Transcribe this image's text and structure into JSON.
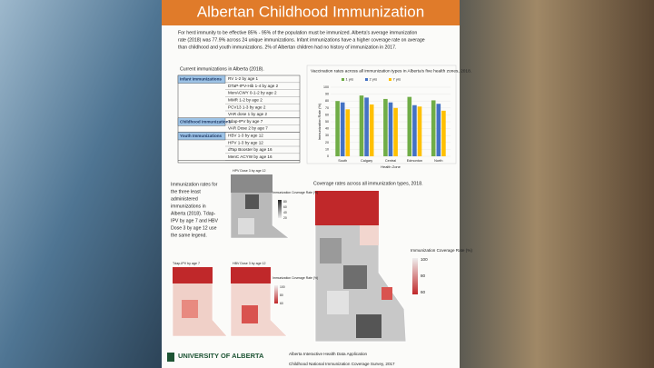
{
  "header": {
    "title": "Albertan Childhood Immunization"
  },
  "intro_lines": [
    "For herd immunity to be effective 85% - 95% of the population must be immunized. Alberta's average immunization",
    "rate (2018) was 77.9% across 24 unique immunizations. Infant immunizations have a higher coverage rate on average",
    "than childhood and youth immunizations. 2% of Albertan children had no history of immunization in 2017."
  ],
  "table": {
    "caption": "Current immunizations in Alberta (2018).",
    "groups": [
      {
        "name": "Infant Immunizations",
        "items": [
          "RV 1-2 by age 1",
          "DTaP-IPV-Hib 1-4 by age 2",
          "MenACWY 0-1-2 by age 2",
          "MMR 1-2 by age 2",
          "PCV13 1-3 by age 2",
          "VAR dose 1 by age 2"
        ]
      },
      {
        "name": "Childhood Immunizations",
        "items": [
          "Tdap-IPV by age 7",
          "VAR Dose 2 by age 7"
        ]
      },
      {
        "name": "Youth Immunizations",
        "items": [
          "HBV 1-3 by age 12",
          "HPV 1-3 by age 12",
          "dTap Booster by age 16",
          "MenC ACYW by age 16"
        ]
      }
    ]
  },
  "chart_data": {
    "type": "bar",
    "title": "Vaccination rates across all immunization types in Alberta's five health zones, 2018.",
    "x_label": "Health Zone",
    "y_label": "Immunization Rate (%)",
    "categories": [
      "South",
      "Calgary",
      "Central",
      "Edmonton",
      "North"
    ],
    "series": [
      {
        "name": "1 yrs",
        "color": "#70ad47",
        "values": [
          80,
          88,
          83,
          86,
          81
        ]
      },
      {
        "name": "2 yrs",
        "color": "#4472c4",
        "values": [
          78,
          85,
          78,
          74,
          76
        ]
      },
      {
        "name": "7 yrs",
        "color": "#ffc000",
        "values": [
          68,
          75,
          70,
          72,
          66
        ]
      }
    ],
    "ylim": [
      0,
      100
    ],
    "yticks": [
      0,
      10,
      20,
      30,
      40,
      50,
      60,
      70,
      80,
      90,
      100
    ],
    "grid": true
  },
  "small_maps": {
    "text_lines": [
      "Immunization rates for",
      "the three least",
      "administered",
      "immunizations in",
      "Alberta (2018). Tdap-",
      "IPV by age 7 and HBV",
      "Dose 3 by age 12 use",
      "the same legend."
    ],
    "maps": [
      {
        "title": "HPV Dose 3 by age 12",
        "legend_title": "Immunization Coverage Rate (%)",
        "legend_ticks": [
          80,
          60,
          40,
          20
        ]
      },
      {
        "title": "Tdap-IPV by age 7"
      },
      {
        "title": "HBV Dose 3 by age 12",
        "legend_title": "Immunization Coverage Rate (%)",
        "legend_ticks": [
          100,
          80,
          60
        ]
      }
    ]
  },
  "big_map": {
    "title": "Coverage rates across all immunization types, 2018.",
    "legend_title": "Immunization Coverage Rate (%)",
    "legend_ticks": [
      100,
      80,
      60
    ]
  },
  "footer": {
    "university": "UNIVERSITY OF ALBERTA",
    "source_1": "Alberta Interactive Health Data Application",
    "source_2": "Childhood National Immunization Coverage Survey, 2017"
  }
}
